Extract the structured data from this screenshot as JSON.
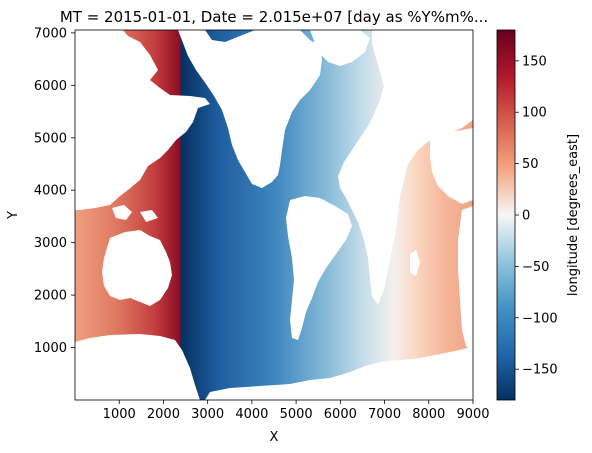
{
  "chart_data": {
    "type": "heatmap",
    "title": "MT = 2015-01-01, Date = 2.015e+07 [day as %Y%m%...",
    "xlabel": "X",
    "ylabel": "Y",
    "xlim": [
      0,
      9000
    ],
    "ylim": [
      0,
      7055
    ],
    "x_ticks": [
      1000,
      2000,
      3000,
      4000,
      5000,
      6000,
      7000,
      8000,
      9000
    ],
    "x_tick_labels": [
      "1000",
      "2000",
      "3000",
      "4000",
      "5000",
      "6000",
      "7000",
      "8000",
      "9000"
    ],
    "y_ticks": [
      1000,
      2000,
      3000,
      4000,
      5000,
      6000,
      7000
    ],
    "y_tick_labels": [
      "1000",
      "2000",
      "3000",
      "4000",
      "5000",
      "6000",
      "7000"
    ],
    "colorbar": {
      "label": "longitude [degrees_east]",
      "vmin": -180,
      "vmax": 180,
      "colormap": "RdBu_r",
      "ticks": [
        -150,
        -100,
        -50,
        0,
        50,
        100,
        150
      ],
      "tick_labels": [
        "−150",
        "−100",
        "−50",
        "0",
        "50",
        "100",
        "150"
      ]
    },
    "field_description": "longitude varies along X: +180 at west cut (X≈2650) wrapping to −180, through 0 near X≈7300, to +60 at the east edge; land masked white",
    "grid": false,
    "colors": {
      "dark_red": "#67001f",
      "red": "#b2182b",
      "light_red": "#ef8a62",
      "pale_red": "#fddbc7",
      "white": "#f7f7f7",
      "pale_blue": "#d1e5f0",
      "light_blue": "#67a9cf",
      "blue": "#2166ac",
      "dark_blue": "#053061"
    }
  }
}
